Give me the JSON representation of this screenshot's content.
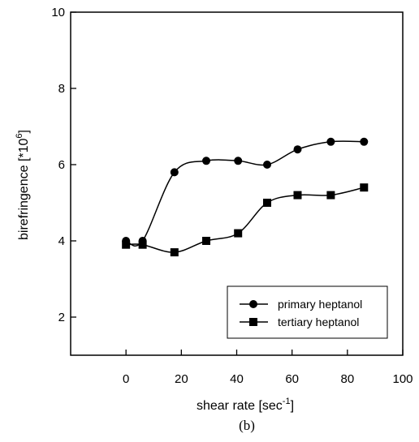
{
  "chart_data": {
    "type": "line",
    "xlabel": "shear rate [sec",
    "xlabel_superscript": "-1",
    "xlabel_suffix": "]",
    "ylabel": "birefringence [*10",
    "ylabel_superscript": "6",
    "ylabel_suffix": "]",
    "panel_label": "(b)",
    "xlim": [
      -20,
      100
    ],
    "ylim": [
      1,
      10
    ],
    "x_ticks": [
      0,
      20,
      40,
      60,
      80,
      100
    ],
    "x_tick_labels": [
      "0",
      "20",
      "40",
      "60",
      "80",
      "100"
    ],
    "y_ticks": [
      2,
      4,
      6,
      8,
      10
    ],
    "y_tick_labels": [
      "2",
      "4",
      "6",
      "8",
      "10"
    ],
    "grid": false,
    "legend_position": "bottom-right",
    "series": [
      {
        "name": "primary heptanol",
        "marker": "circle",
        "x": [
          0,
          6,
          17.5,
          29,
          40.5,
          51,
          62,
          74,
          86
        ],
        "y": [
          4.0,
          4.0,
          5.8,
          6.1,
          6.1,
          6.0,
          6.4,
          6.6,
          6.6
        ]
      },
      {
        "name": "tertiary heptanol",
        "marker": "square",
        "x": [
          0,
          6,
          17.5,
          29,
          40.5,
          51,
          62,
          74,
          86
        ],
        "y": [
          3.9,
          3.9,
          3.7,
          4.0,
          4.2,
          5.0,
          5.2,
          5.2,
          5.4
        ]
      }
    ]
  }
}
